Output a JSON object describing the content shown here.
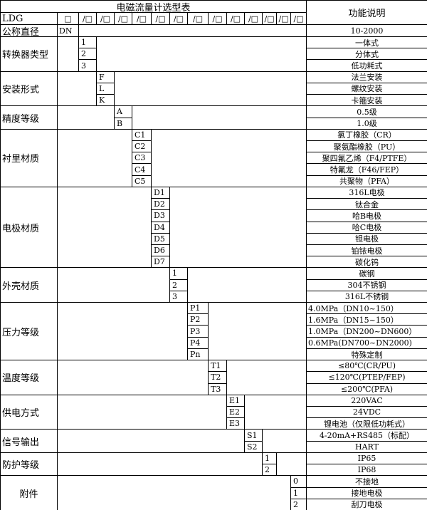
{
  "header": {
    "title": "电磁流量计选型表",
    "function_header": "功能说明",
    "model_prefix": "LDG",
    "first_box": "□",
    "slot_box": "/□",
    "slot_count": 13
  },
  "nominal_diameter": {
    "label": "公称直径",
    "code": "DN",
    "desc": "10-2000"
  },
  "groups": [
    {
      "label": "转换器类型",
      "col": 0,
      "items": [
        {
          "code": "1",
          "desc": "一体式"
        },
        {
          "code": "2",
          "desc": "分体式"
        },
        {
          "code": "3",
          "desc": "低功耗式"
        }
      ]
    },
    {
      "label": "安装形式",
      "col": 1,
      "items": [
        {
          "code": "F",
          "desc": "法兰安装"
        },
        {
          "code": "L",
          "desc": "螺纹安装"
        },
        {
          "code": "K",
          "desc": "卡箍安装"
        }
      ]
    },
    {
      "label": "精度等级",
      "col": 2,
      "items": [
        {
          "code": "A",
          "desc": "0.5级"
        },
        {
          "code": "B",
          "desc": "1.0级"
        }
      ]
    },
    {
      "label": "衬里材质",
      "col": 3,
      "items": [
        {
          "code": "C1",
          "desc": "氯丁橡胶（CR）"
        },
        {
          "code": "C2",
          "desc": "聚氨酯橡胶（PU）"
        },
        {
          "code": "C3",
          "desc": "聚四氟乙烯（F4/PTFE）"
        },
        {
          "code": "C4",
          "desc": "特氟龙（F46/FEP）"
        },
        {
          "code": "C5",
          "desc": "共聚物（PFA）"
        }
      ]
    },
    {
      "label": "电极材质",
      "col": 4,
      "items": [
        {
          "code": "D1",
          "desc": "316L电极"
        },
        {
          "code": "D2",
          "desc": "钛合金"
        },
        {
          "code": "D3",
          "desc": "哈B电极"
        },
        {
          "code": "D4",
          "desc": "哈C电极"
        },
        {
          "code": "D5",
          "desc": "钽电极"
        },
        {
          "code": "D6",
          "desc": "铂铱电极"
        },
        {
          "code": "D7",
          "desc": "碳化钨"
        }
      ]
    },
    {
      "label": "外壳材质",
      "col": 5,
      "items": [
        {
          "code": "1",
          "desc": "碳钢"
        },
        {
          "code": "2",
          "desc": "304不锈钢"
        },
        {
          "code": "3",
          "desc": "316L不锈钢"
        }
      ]
    },
    {
      "label": "压力等级",
      "col": 6,
      "align": "left",
      "items": [
        {
          "code": "P1",
          "desc": "4.0MPa（DN10~150）"
        },
        {
          "code": "P2",
          "desc": "1.6MPa（DN15~150）"
        },
        {
          "code": "P3",
          "desc": "1.0MPa（DN200~DN600）"
        },
        {
          "code": "P4",
          "desc": "0.6MPa(DN700~DN2000)"
        },
        {
          "code": "Pn",
          "desc": "特殊定制",
          "center": true
        }
      ]
    },
    {
      "label": "温度等级",
      "col": 7,
      "items": [
        {
          "code": "T1",
          "desc": "≤80℃(CR/PU)"
        },
        {
          "code": "T2",
          "desc": "≤120℃(PTEP/FEP)"
        },
        {
          "code": "T3",
          "desc": "≤200℃(PFA)"
        }
      ]
    },
    {
      "label": "供电方式",
      "col": 8,
      "items": [
        {
          "code": "E1",
          "desc": "220VAC"
        },
        {
          "code": "E2",
          "desc": "24VDC"
        },
        {
          "code": "E3",
          "desc": "锂电池（仅限低功耗式）"
        }
      ]
    },
    {
      "label": "信号输出",
      "col": 9,
      "items": [
        {
          "code": "S1",
          "desc": "4-20mA+RS485（标配）"
        },
        {
          "code": "S2",
          "desc": "HART"
        }
      ]
    },
    {
      "label": "防护等级",
      "col": 10,
      "items": [
        {
          "code": "1",
          "desc": "IP65"
        },
        {
          "code": "2",
          "desc": "IP68"
        }
      ]
    },
    {
      "label": "附件",
      "col": 12,
      "labelCenter": true,
      "items": [
        {
          "code": "0",
          "desc": "不接地"
        },
        {
          "code": "1",
          "desc": "接地电极"
        },
        {
          "code": "2",
          "desc": "刮刀电极"
        }
      ]
    }
  ]
}
